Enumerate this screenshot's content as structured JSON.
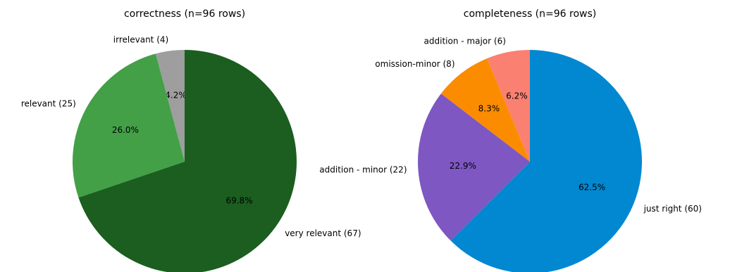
{
  "chart_data": [
    {
      "type": "pie",
      "title": "correctness (n=96 rows)",
      "slices": [
        {
          "label": "irrelevant (4)",
          "value": 4,
          "pct": "4.2%",
          "color": "#9e9e9e"
        },
        {
          "label": "relevant (25)",
          "value": 25,
          "pct": "26.0%",
          "color": "#43a047"
        },
        {
          "label": "very relevant (67)",
          "value": 67,
          "pct": "69.8%",
          "color": "#1b5e20"
        }
      ]
    },
    {
      "type": "pie",
      "title": "completeness (n=96 rows)",
      "slices": [
        {
          "label": "addition - major (6)",
          "value": 6,
          "pct": "6.2%",
          "color": "#fa8072"
        },
        {
          "label": "omission-minor (8)",
          "value": 8,
          "pct": "8.3%",
          "color": "#fb8c00"
        },
        {
          "label": "addition - minor (22)",
          "value": 22,
          "pct": "22.9%",
          "color": "#7e57c2"
        },
        {
          "label": "just right (60)",
          "value": 60,
          "pct": "62.5%",
          "color": "#0288d1"
        }
      ]
    }
  ]
}
